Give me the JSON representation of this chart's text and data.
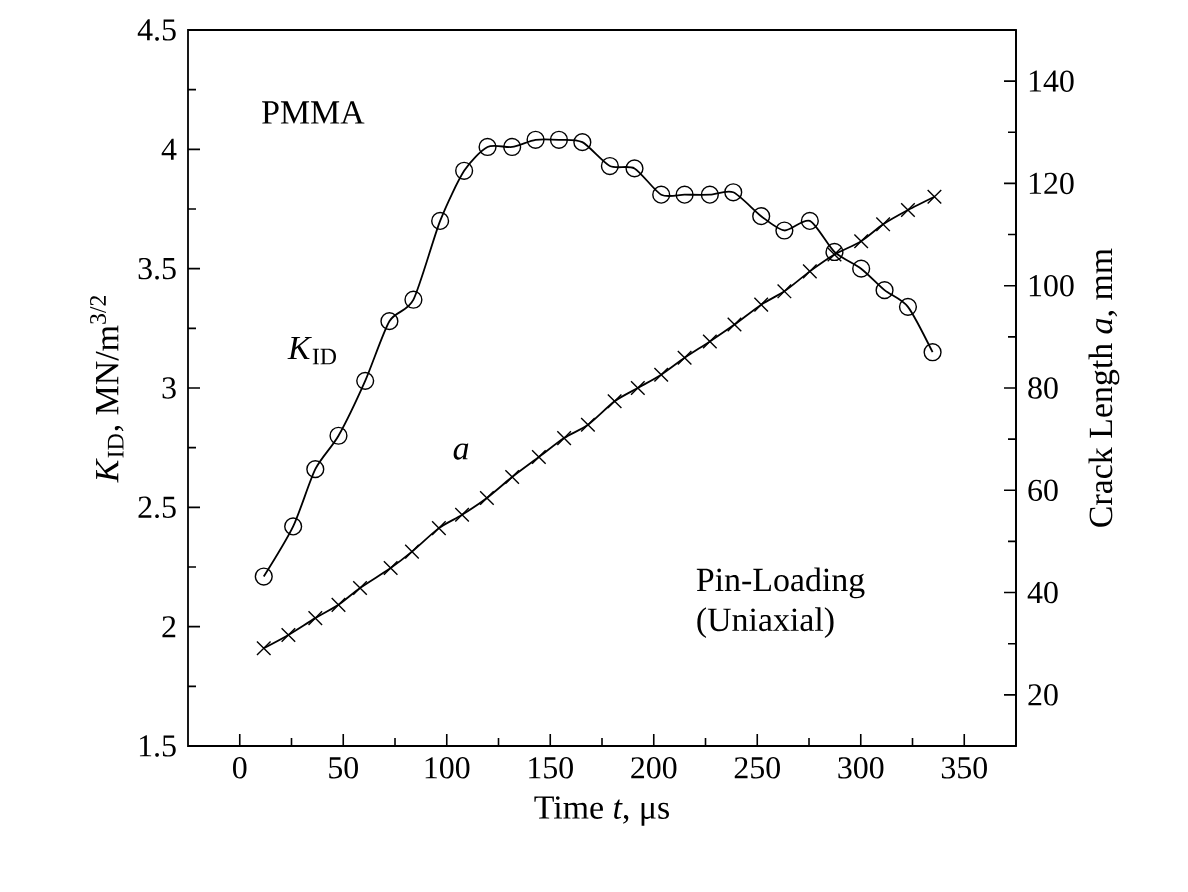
{
  "chart_data": {
    "type": "line",
    "xlabel": "Time *t*, μs",
    "ylabel": "*K*$_{ID}$, MN/m$^{3/2}$",
    "y2label": "Crack Length *a*, mm",
    "xlim": [
      -25,
      375
    ],
    "xticks": [
      0,
      50,
      100,
      150,
      200,
      250,
      300,
      350
    ],
    "ylim": [
      1.5,
      4.5
    ],
    "yticks": [
      1.5,
      2,
      2.5,
      3,
      3.5,
      4,
      4.5
    ],
    "y2lim": [
      10,
      150
    ],
    "y2ticks": [
      20,
      40,
      60,
      80,
      100,
      120,
      140
    ],
    "annotations": [
      "PMMA",
      "Pin-Loading (Uniaxial)"
    ],
    "series": [
      {
        "name": "*K*$_{ID}$",
        "color": "#000000",
        "marker": "circle",
        "x": [
          11.6,
          25.8,
          36.5,
          47.7,
          60.6,
          72.3,
          83.9,
          96.8,
          108.4,
          119.7,
          131.6,
          142.9,
          154.2,
          165.5,
          178.8,
          190.7,
          203.6,
          214.9,
          227.1,
          238.4,
          251.9,
          263.1,
          275.4,
          287.3,
          300.2,
          311.5,
          322.8,
          334.7
        ],
        "values": [
          2.21,
          2.42,
          2.66,
          2.8,
          3.03,
          3.28,
          3.37,
          3.7,
          3.91,
          4.01,
          4.01,
          4.04,
          4.04,
          4.03,
          3.93,
          3.92,
          3.81,
          3.81,
          3.81,
          3.82,
          3.72,
          3.66,
          3.7,
          3.57,
          3.5,
          3.41,
          3.34,
          3.15
        ]
      },
      {
        "name": "*a*",
        "color": "#000000",
        "marker": "cross",
        "axis": "y2",
        "x": [
          11.6,
          23.5,
          36.5,
          47.7,
          58.1,
          72.9,
          83.2,
          96.2,
          107.4,
          119.4,
          131.6,
          144.5,
          156.7,
          168.2,
          181.1,
          192.3,
          203.6,
          214.9,
          227.1,
          239.0,
          251.9,
          263.1,
          275.4,
          287.3,
          300.2,
          310.8,
          322.8,
          335.6
        ],
        "values": [
          29.1,
          31.7,
          35.0,
          37.6,
          40.9,
          44.8,
          48.0,
          52.6,
          55.2,
          58.5,
          62.6,
          66.5,
          70.2,
          72.8,
          77.4,
          80.0,
          82.6,
          85.9,
          89.1,
          92.4,
          96.3,
          98.9,
          102.8,
          106.1,
          108.7,
          112.0,
          114.8,
          117.4
        ]
      }
    ]
  }
}
